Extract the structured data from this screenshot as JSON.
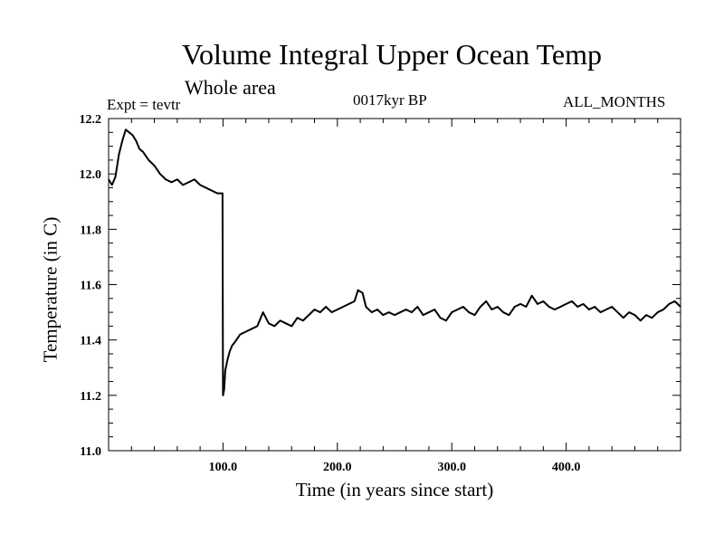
{
  "chart_data": {
    "type": "line",
    "title": "Volume Integral Upper Ocean Temp",
    "subtitle": "Whole area",
    "annotations": {
      "experiment": "Expt = tevtr",
      "period": "0017kyr BP",
      "months": "ALL_MONTHS"
    },
    "xlabel": "Time (in years since start)",
    "ylabel": "Temperature (in C)",
    "xlim": [
      0,
      500
    ],
    "ylim": [
      11.0,
      12.2
    ],
    "grid": false,
    "x_ticks": [
      {
        "value": 100,
        "label": "100.0"
      },
      {
        "value": 200,
        "label": "200.0"
      },
      {
        "value": 300,
        "label": "300.0"
      },
      {
        "value": 400,
        "label": "400.0"
      }
    ],
    "y_ticks": [
      {
        "value": 11.0,
        "label": "11.0"
      },
      {
        "value": 11.2,
        "label": "11.2"
      },
      {
        "value": 11.4,
        "label": "11.4"
      },
      {
        "value": 11.6,
        "label": "11.6"
      },
      {
        "value": 11.8,
        "label": "11.8"
      },
      {
        "value": 12.0,
        "label": "12.0"
      },
      {
        "value": 12.2,
        "label": "12.2"
      }
    ],
    "series": [
      {
        "color": "#000000",
        "x": [
          0,
          3,
          6,
          9,
          12,
          15,
          18,
          21,
          24,
          27,
          30,
          35,
          40,
          45,
          50,
          55,
          60,
          65,
          70,
          75,
          80,
          85,
          90,
          95,
          99,
          99.6,
          100,
          101,
          102,
          104,
          106,
          108,
          110,
          115,
          120,
          125,
          130,
          135,
          140,
          145,
          150,
          155,
          160,
          165,
          170,
          175,
          180,
          185,
          190,
          195,
          200,
          205,
          210,
          215,
          218,
          222,
          225,
          230,
          235,
          240,
          245,
          250,
          255,
          260,
          265,
          270,
          275,
          280,
          285,
          290,
          295,
          300,
          305,
          310,
          315,
          320,
          325,
          330,
          335,
          340,
          345,
          350,
          355,
          360,
          365,
          370,
          375,
          380,
          385,
          390,
          395,
          400,
          405,
          410,
          415,
          420,
          425,
          430,
          435,
          440,
          445,
          450,
          455,
          460,
          465,
          470,
          475,
          480,
          485,
          490,
          495,
          500
        ],
        "y": [
          11.98,
          11.96,
          11.99,
          12.07,
          12.12,
          12.16,
          12.15,
          12.14,
          12.12,
          12.09,
          12.08,
          12.05,
          12.03,
          12.0,
          11.98,
          11.97,
          11.98,
          11.96,
          11.97,
          11.98,
          11.96,
          11.95,
          11.94,
          11.93,
          11.93,
          11.93,
          11.2,
          11.22,
          11.29,
          11.33,
          11.36,
          11.38,
          11.39,
          11.42,
          11.43,
          11.44,
          11.45,
          11.5,
          11.46,
          11.45,
          11.47,
          11.46,
          11.45,
          11.48,
          11.47,
          11.49,
          11.51,
          11.5,
          11.52,
          11.5,
          11.51,
          11.52,
          11.53,
          11.54,
          11.58,
          11.57,
          11.52,
          11.5,
          11.51,
          11.49,
          11.5,
          11.49,
          11.5,
          11.51,
          11.5,
          11.52,
          11.49,
          11.5,
          11.51,
          11.48,
          11.47,
          11.5,
          11.51,
          11.52,
          11.5,
          11.49,
          11.52,
          11.54,
          11.51,
          11.52,
          11.5,
          11.49,
          11.52,
          11.53,
          11.52,
          11.56,
          11.53,
          11.54,
          11.52,
          11.51,
          11.52,
          11.53,
          11.54,
          11.52,
          11.53,
          11.51,
          11.52,
          11.5,
          11.51,
          11.52,
          11.5,
          11.48,
          11.5,
          11.49,
          11.47,
          11.49,
          11.48,
          11.5,
          11.51,
          11.53,
          11.54,
          11.52
        ]
      }
    ]
  }
}
